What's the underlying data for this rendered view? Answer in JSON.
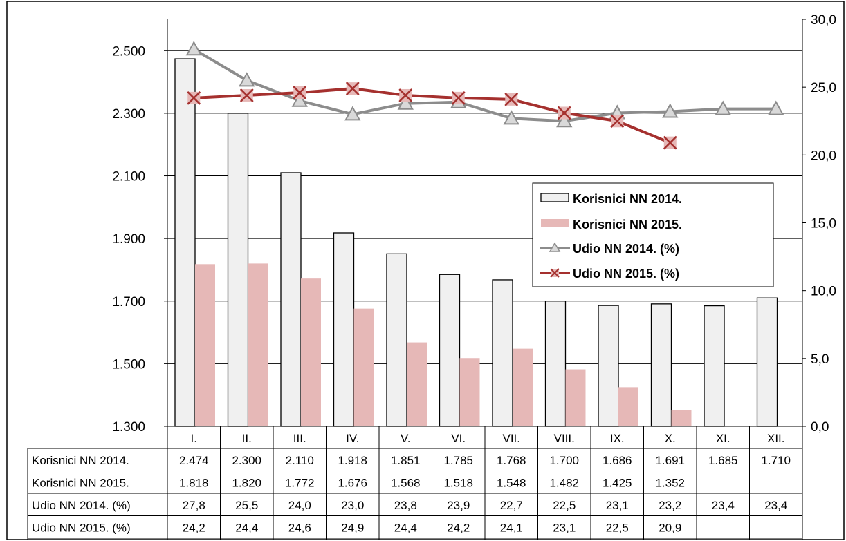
{
  "chart_data": {
    "type": "bar",
    "categories": [
      "I.",
      "II.",
      "III.",
      "IV.",
      "V.",
      "VI.",
      "VII.",
      "VIII.",
      "IX.",
      "X.",
      "XI.",
      "XII."
    ],
    "left_axis": {
      "ylim": [
        1300,
        2600
      ],
      "ticks": [
        1300,
        1500,
        1700,
        1900,
        2100,
        2300,
        2500
      ],
      "tick_labels": [
        "1.300",
        "1.500",
        "1.700",
        "1.900",
        "2.100",
        "2.300",
        "2.500"
      ]
    },
    "right_axis": {
      "ylim": [
        0,
        30
      ],
      "ticks": [
        0,
        5,
        10,
        15,
        20,
        25,
        30
      ],
      "tick_labels": [
        "0,0",
        "5,0",
        "10,0",
        "15,0",
        "20,0",
        "25,0",
        "30,0"
      ]
    },
    "series": [
      {
        "name": "Korisnici NN 2014.",
        "kind": "bar",
        "axis": "left",
        "color": "#f0f0f0",
        "values": [
          2474,
          2300,
          2110,
          1918,
          1851,
          1785,
          1768,
          1700,
          1686,
          1691,
          1685,
          1710
        ],
        "labels": [
          "2.474",
          "2.300",
          "2.110",
          "1.918",
          "1.851",
          "1.785",
          "1.768",
          "1.700",
          "1.686",
          "1.691",
          "1.685",
          "1.710"
        ]
      },
      {
        "name": "Korisnici NN 2015.",
        "kind": "bar",
        "axis": "left",
        "color": "#e6b8b7",
        "values": [
          1818,
          1820,
          1772,
          1676,
          1568,
          1518,
          1548,
          1482,
          1425,
          1352,
          null,
          null
        ],
        "labels": [
          "1.818",
          "1.820",
          "1.772",
          "1.676",
          "1.568",
          "1.518",
          "1.548",
          "1.482",
          "1.425",
          "1.352",
          "",
          ""
        ]
      },
      {
        "name": "Udio NN 2014. (%)",
        "kind": "line",
        "axis": "right",
        "color": "#8c8c8c",
        "marker": "triangle",
        "values": [
          27.8,
          25.5,
          24.0,
          23.0,
          23.8,
          23.9,
          22.7,
          22.5,
          23.1,
          23.2,
          23.4,
          23.4
        ],
        "labels": [
          "27,8",
          "25,5",
          "24,0",
          "23,0",
          "23,8",
          "23,9",
          "22,7",
          "22,5",
          "23,1",
          "23,2",
          "23,4",
          "23,4"
        ]
      },
      {
        "name": "Udio NN 2015. (%)",
        "kind": "line",
        "axis": "right",
        "color": "#a5302e",
        "marker": "x",
        "values": [
          24.2,
          24.4,
          24.6,
          24.9,
          24.4,
          24.2,
          24.1,
          23.1,
          22.5,
          20.9,
          null,
          null
        ],
        "labels": [
          "24,2",
          "24,4",
          "24,6",
          "24,9",
          "24,4",
          "24,2",
          "24,1",
          "23,1",
          "22,5",
          "20,9",
          "",
          ""
        ]
      }
    ],
    "grid": true,
    "legend": "middle-right",
    "data_table": true
  }
}
